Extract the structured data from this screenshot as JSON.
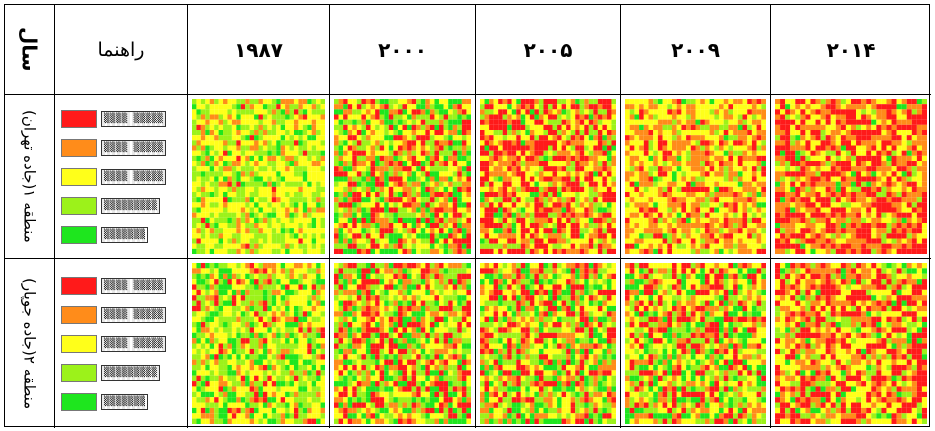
{
  "table": {
    "year_header": "سال",
    "legend_header": "راهنما",
    "years": [
      "۱۹۸۷",
      "۲۰۰۰",
      "۲۰۰۵",
      "۲۰۰۹",
      "۲۰۱۴"
    ],
    "rows": [
      {
        "label": "منطقه ۱(جاده تهران)"
      },
      {
        "label": "منطقه ۲(جاده جوپار)"
      }
    ]
  },
  "legend": {
    "items": [
      {
        "color": "#ff1a1a",
        "label": "▒▒▒▒ ▒▒▒▒▒"
      },
      {
        "color": "#ff8c1a",
        "label": "▒▒▒▒ ▒▒▒▒▒"
      },
      {
        "color": "#ffff1a",
        "label": "▒▒▒▒ ▒▒▒▒▒"
      },
      {
        "color": "#9cf21a",
        "label": "▒▒▒▒▒▒▒▒▒"
      },
      {
        "color": "#1ee61e",
        "label": "▒▒▒▒▒▒▒"
      }
    ]
  },
  "maps": {
    "palette": [
      "#ff1a1a",
      "#ff8c1a",
      "#ffff1a",
      "#9cf21a",
      "#1ee61e"
    ],
    "images": [
      {
        "region": "region-1",
        "year": "۱۹۸۷",
        "dominant": "yellow-green"
      },
      {
        "region": "region-1",
        "year": "۲۰۰۰",
        "dominant": "green-red"
      },
      {
        "region": "region-1",
        "year": "۲۰۰۵",
        "dominant": "red-yellow"
      },
      {
        "region": "region-1",
        "year": "۲۰۰۹",
        "dominant": "orange-yellow"
      },
      {
        "region": "region-1",
        "year": "۲۰۱۴",
        "dominant": "red-orange"
      },
      {
        "region": "region-2",
        "year": "۱۹۸۷",
        "dominant": "green-yellow"
      },
      {
        "region": "region-2",
        "year": "۲۰۰۰",
        "dominant": "green-red"
      },
      {
        "region": "region-2",
        "year": "۲۰۰۵",
        "dominant": "green-red"
      },
      {
        "region": "region-2",
        "year": "۲۰۰۹",
        "dominant": "green-red"
      },
      {
        "region": "region-2",
        "year": "۲۰۱۴",
        "dominant": "red-yellow"
      }
    ]
  }
}
